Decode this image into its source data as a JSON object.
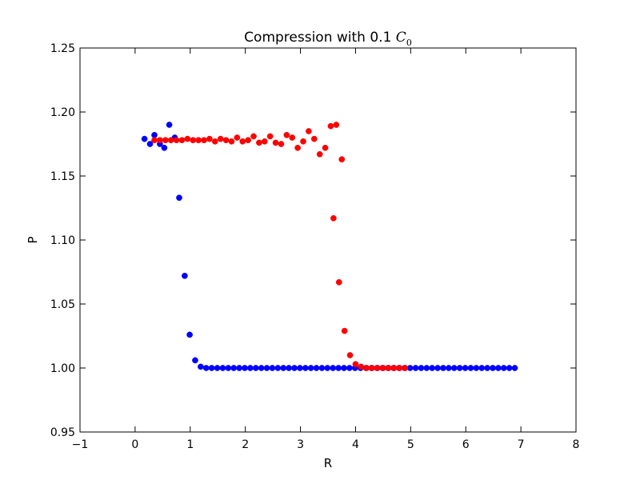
{
  "chart_data": {
    "type": "scatter",
    "title": {
      "prefix": "Compression with 0.1 ",
      "math_symbol": "C",
      "math_subscript": "0"
    },
    "xlabel": "R",
    "ylabel": "P",
    "xlim": [
      -1,
      8
    ],
    "ylim": [
      0.95,
      1.25
    ],
    "xticks": [
      -1,
      0,
      1,
      2,
      3,
      4,
      5,
      6,
      7,
      8
    ],
    "xtick_labels": [
      "−1",
      "0",
      "1",
      "2",
      "3",
      "4",
      "5",
      "6",
      "7",
      "8"
    ],
    "yticks": [
      0.95,
      1.0,
      1.05,
      1.1,
      1.15,
      1.2,
      1.25
    ],
    "ytick_labels": [
      "0.95",
      "1.00",
      "1.05",
      "1.10",
      "1.15",
      "1.20",
      "1.25"
    ],
    "grid": false,
    "series": [
      {
        "color": "#0000ff",
        "points": [
          [
            0.17,
            1.179
          ],
          [
            0.27,
            1.175
          ],
          [
            0.35,
            1.182
          ],
          [
            0.45,
            1.175
          ],
          [
            0.53,
            1.172
          ],
          [
            0.62,
            1.19
          ],
          [
            0.72,
            1.18
          ],
          [
            0.8,
            1.133
          ],
          [
            0.9,
            1.072
          ],
          [
            0.99,
            1.026
          ],
          [
            1.09,
            1.006
          ],
          [
            1.19,
            1.001
          ],
          [
            1.29,
            1.0
          ],
          [
            1.39,
            1.0
          ],
          [
            1.49,
            1.0
          ],
          [
            1.59,
            1.0
          ],
          [
            1.69,
            1.0
          ],
          [
            1.79,
            1.0
          ],
          [
            1.89,
            1.0
          ],
          [
            1.99,
            1.0
          ],
          [
            2.09,
            1.0
          ],
          [
            2.19,
            1.0
          ],
          [
            2.29,
            1.0
          ],
          [
            2.39,
            1.0
          ],
          [
            2.49,
            1.0
          ],
          [
            2.59,
            1.0
          ],
          [
            2.69,
            1.0
          ],
          [
            2.79,
            1.0
          ],
          [
            2.89,
            1.0
          ],
          [
            2.99,
            1.0
          ],
          [
            3.09,
            1.0
          ],
          [
            3.19,
            1.0
          ],
          [
            3.29,
            1.0
          ],
          [
            3.39,
            1.0
          ],
          [
            3.49,
            1.0
          ],
          [
            3.59,
            1.0
          ],
          [
            3.69,
            1.0
          ],
          [
            3.79,
            1.0
          ],
          [
            3.89,
            1.0
          ],
          [
            3.99,
            1.0
          ],
          [
            4.09,
            1.0
          ],
          [
            4.19,
            1.0
          ],
          [
            4.29,
            1.0
          ],
          [
            4.39,
            1.0
          ],
          [
            4.49,
            1.0
          ],
          [
            4.59,
            1.0
          ],
          [
            4.69,
            1.0
          ],
          [
            4.79,
            1.0
          ],
          [
            4.89,
            1.0
          ],
          [
            4.99,
            1.0
          ],
          [
            5.09,
            1.0
          ],
          [
            5.19,
            1.0
          ],
          [
            5.29,
            1.0
          ],
          [
            5.39,
            1.0
          ],
          [
            5.49,
            1.0
          ],
          [
            5.59,
            1.0
          ],
          [
            5.69,
            1.0
          ],
          [
            5.79,
            1.0
          ],
          [
            5.89,
            1.0
          ],
          [
            5.99,
            1.0
          ],
          [
            6.09,
            1.0
          ],
          [
            6.19,
            1.0
          ],
          [
            6.29,
            1.0
          ],
          [
            6.39,
            1.0
          ],
          [
            6.49,
            1.0
          ],
          [
            6.59,
            1.0
          ],
          [
            6.69,
            1.0
          ],
          [
            6.79,
            1.0
          ],
          [
            6.89,
            1.0
          ]
        ]
      },
      {
        "color": "#ff0000",
        "points": [
          [
            0.35,
            1.178
          ],
          [
            0.45,
            1.178
          ],
          [
            0.55,
            1.178
          ],
          [
            0.65,
            1.178
          ],
          [
            0.75,
            1.178
          ],
          [
            0.85,
            1.178
          ],
          [
            0.95,
            1.179
          ],
          [
            1.05,
            1.178
          ],
          [
            1.15,
            1.178
          ],
          [
            1.25,
            1.178
          ],
          [
            1.35,
            1.179
          ],
          [
            1.45,
            1.177
          ],
          [
            1.55,
            1.179
          ],
          [
            1.65,
            1.178
          ],
          [
            1.75,
            1.177
          ],
          [
            1.85,
            1.18
          ],
          [
            1.95,
            1.177
          ],
          [
            2.05,
            1.178
          ],
          [
            2.15,
            1.181
          ],
          [
            2.25,
            1.176
          ],
          [
            2.35,
            1.177
          ],
          [
            2.45,
            1.181
          ],
          [
            2.55,
            1.176
          ],
          [
            2.65,
            1.175
          ],
          [
            2.75,
            1.182
          ],
          [
            2.85,
            1.18
          ],
          [
            2.95,
            1.172
          ],
          [
            3.05,
            1.177
          ],
          [
            3.15,
            1.185
          ],
          [
            3.25,
            1.179
          ],
          [
            3.35,
            1.167
          ],
          [
            3.45,
            1.172
          ],
          [
            3.55,
            1.189
          ],
          [
            3.65,
            1.19
          ],
          [
            3.75,
            1.163
          ],
          [
            3.6,
            1.117
          ],
          [
            3.7,
            1.067
          ],
          [
            3.8,
            1.029
          ],
          [
            3.9,
            1.01
          ],
          [
            4.0,
            1.003
          ],
          [
            4.1,
            1.001
          ],
          [
            4.2,
            1.0
          ],
          [
            4.3,
            1.0
          ],
          [
            4.4,
            1.0
          ],
          [
            4.5,
            1.0
          ],
          [
            4.6,
            1.0
          ],
          [
            4.7,
            1.0
          ],
          [
            4.8,
            1.0
          ],
          [
            4.9,
            1.0
          ]
        ]
      }
    ]
  }
}
